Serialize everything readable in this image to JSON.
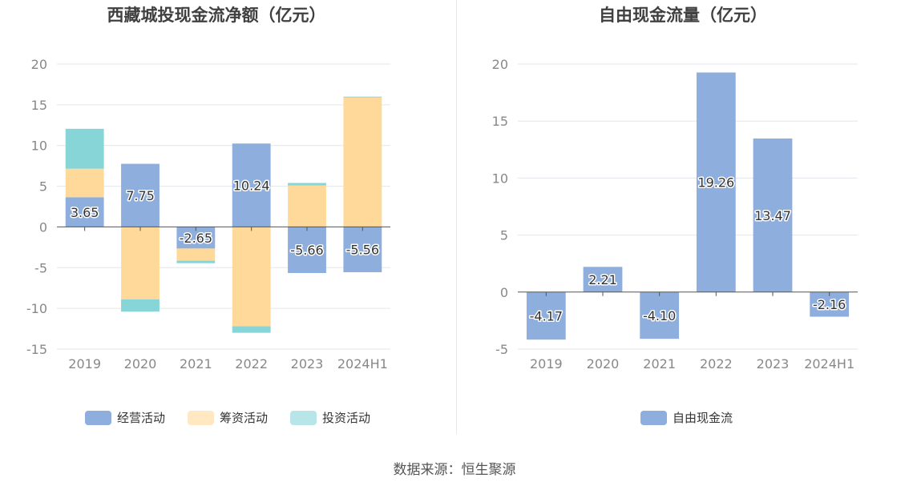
{
  "colors": {
    "operating": "#8eaedd",
    "financing": "#ffd99a",
    "investing": "#88d5d8",
    "fcf": "#8eaedd",
    "grid": "#e3e6ec",
    "axis": "#555555",
    "tick_text": "#888888",
    "title": "#404040"
  },
  "source": "数据来源：恒生聚源",
  "chart_data": [
    {
      "type": "bar",
      "stacked": true,
      "title": "西藏城投现金流净额（亿元）",
      "categories": [
        "2019",
        "2020",
        "2021",
        "2022",
        "2023",
        "2024H1"
      ],
      "ylim": [
        -15,
        20
      ],
      "yticks": [
        20,
        15,
        10,
        5,
        0,
        -5,
        -10,
        -15
      ],
      "ytick_labels": [
        "20",
        "15",
        "10",
        "5",
        "0",
        "-5",
        "-10",
        "-15"
      ],
      "grid": true,
      "legend_position": "bottom",
      "series": [
        {
          "name": "经营活动",
          "key": "operating",
          "values": [
            3.65,
            7.75,
            -2.65,
            10.24,
            -5.66,
            -5.56
          ],
          "labels": [
            "3.65",
            "7.75",
            "-2.65",
            "10.24",
            "-5.66",
            "-5.56"
          ]
        },
        {
          "name": "筹资活动",
          "key": "financing",
          "values": [
            3.5,
            -8.9,
            -1.5,
            -12.2,
            5.1,
            15.9
          ]
        },
        {
          "name": "投资活动",
          "key": "investing",
          "values": [
            4.9,
            -1.5,
            -0.3,
            -0.8,
            0.3,
            0.1
          ]
        }
      ]
    },
    {
      "type": "bar",
      "title": "自由现金流量（亿元）",
      "categories": [
        "2019",
        "2020",
        "2021",
        "2022",
        "2023",
        "2024H1"
      ],
      "ylim": [
        -5,
        20
      ],
      "yticks": [
        20,
        15,
        10,
        5,
        0,
        -5
      ],
      "ytick_labels": [
        "20",
        "15",
        "10",
        "5",
        "0",
        "-5"
      ],
      "grid": true,
      "legend_position": "bottom",
      "series": [
        {
          "name": "自由现金流",
          "key": "fcf",
          "values": [
            -4.17,
            2.21,
            -4.1,
            19.26,
            13.47,
            -2.16
          ],
          "labels": [
            "-4.17",
            "2.21",
            "-4.10",
            "19.26",
            "13.47",
            "-2.16"
          ]
        }
      ]
    }
  ]
}
